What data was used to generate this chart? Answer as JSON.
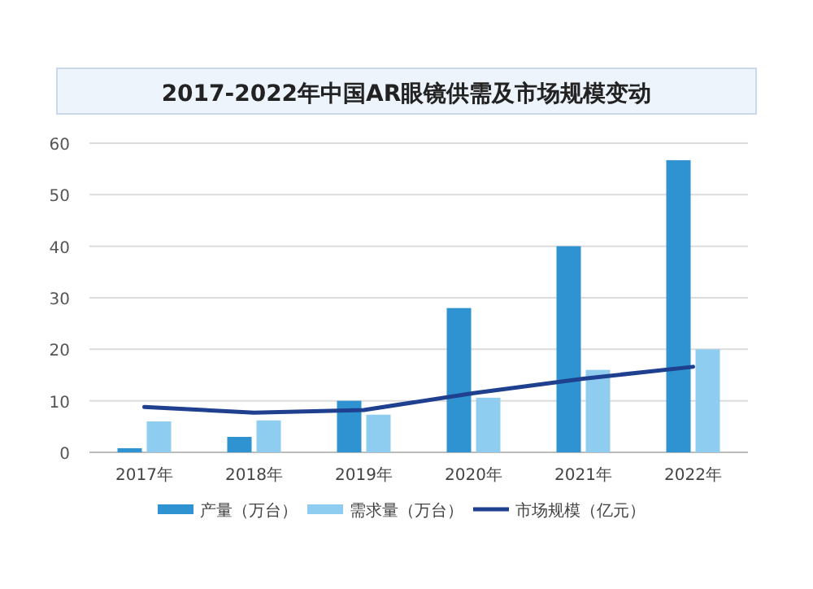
{
  "chart_data": {
    "type": "bar",
    "title": "2017-2022年中国AR眼镜供需及市场规模变动",
    "categories": [
      "2017年",
      "2018年",
      "2019年",
      "2020年",
      "2021年",
      "2022年"
    ],
    "series": [
      {
        "name": "产量（万台）",
        "color": "#2e93d0",
        "values": [
          0.8,
          3,
          10,
          28,
          40,
          56.7
        ]
      },
      {
        "name": "需求量（万台）",
        "color": "#8fcdf0",
        "values": [
          6,
          6.2,
          7.3,
          10.6,
          16,
          20
        ]
      },
      {
        "name": "市场规模（亿元）",
        "type": "line",
        "color": "#1f3f8f",
        "values": [
          8.8,
          7.7,
          8.2,
          11.5,
          14.3,
          16.6
        ]
      }
    ],
    "ylim": [
      0,
      60
    ],
    "yticks": [
      0,
      10,
      20,
      30,
      40,
      50,
      60
    ],
    "grid": "y",
    "legend": "bottom"
  }
}
